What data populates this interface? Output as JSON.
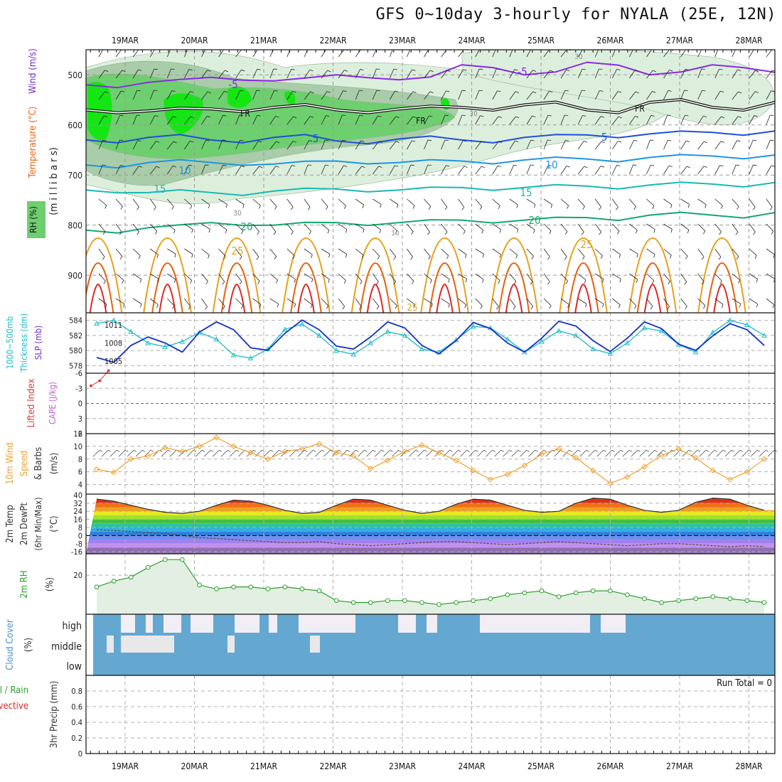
{
  "title": "GFS 0~10day 3-hourly for NYALA (25E, 12N)",
  "date_labels": [
    "19MAR",
    "20MAR",
    "21MAR",
    "22MAR",
    "23MAR",
    "24MAR",
    "25MAR",
    "26MAR",
    "27MAR",
    "28MAR"
  ],
  "colors": {
    "rh_light": "#dcefdc",
    "rh_mid": "#a9cca9",
    "rh_high": "#6ecf6e",
    "rh_max": "#14e614",
    "temp_neg": "#8a2be2",
    "temp_5": "#1e50d8",
    "temp_10": "#1e96e6",
    "temp_15": "#19b9b4",
    "temp_20": "#14a86e",
    "temp_25": "#e6a01e",
    "temp_30": "#e66414",
    "temp_35": "#dc2828",
    "slp": "#1432c8",
    "thickness": "#1ebcc8",
    "lifted_index": "#dc3c3c",
    "wind10m": "#f0a030",
    "rh2m": "#2aa02a",
    "cloud": "#64a8d2",
    "precip_total": "#2aa02a",
    "precip_conv": "#dc2828"
  },
  "chart_data": [
    {
      "type": "contour",
      "panel": "upper-air",
      "ylabel": [
        "Temperature (°C)",
        "Wind (m/s)"
      ],
      "ylabel_mid": "(m i l l i b a r s)",
      "legend_label": "RH (%)",
      "y_ticks": [
        500,
        600,
        700,
        800,
        900
      ],
      "y_range": [
        950,
        450
      ],
      "contour_labels": [
        "-5",
        "FR",
        "5",
        "10",
        "15",
        "20",
        "25",
        "30"
      ],
      "contours": [
        {
          "label": "-5",
          "pressure": [
            520,
            515,
            505,
            512,
            500,
            510,
            480,
            500,
            475,
            500,
            480,
            495
          ]
        },
        {
          "label": "FR",
          "pressure": [
            570,
            572,
            568,
            565,
            570,
            568,
            565,
            560,
            570,
            555,
            565,
            555
          ]
        },
        {
          "label": "5",
          "pressure": [
            630,
            625,
            630,
            625,
            632,
            628,
            630,
            625,
            620,
            618,
            615,
            612
          ]
        },
        {
          "label": "10",
          "pressure": [
            680,
            675,
            675,
            678,
            672,
            675,
            672,
            670,
            668,
            665,
            662,
            660
          ]
        },
        {
          "label": "15",
          "pressure": [
            730,
            735,
            735,
            732,
            728,
            730,
            725,
            725,
            722,
            720,
            718,
            715
          ]
        },
        {
          "label": "20",
          "pressure": [
            810,
            805,
            795,
            800,
            795,
            795,
            790,
            790,
            785,
            780,
            780,
            775
          ]
        }
      ]
    },
    {
      "type": "line",
      "panel": "slp-thickness",
      "ylabel": [
        "1000~500mb",
        "Thickness (dm)",
        "SLP (mb)"
      ],
      "y_ticks_left": [
        584,
        582,
        580,
        578
      ],
      "y_ticks_right": [
        1011,
        1008,
        1005
      ],
      "series": [
        {
          "name": "SLP (mb)",
          "values": [
            1005.6,
            1004.8,
            1007.6,
            1009.0,
            1008.0,
            1006.5,
            1009.8,
            1011.5,
            1010.2,
            1007.2,
            1006.8,
            1009.6,
            1011.8,
            1010.2,
            1007.5,
            1007.0,
            1009.0,
            1011.5,
            1010.5,
            1007.6,
            1006.2,
            1008.4,
            1011.4,
            1010.4,
            1008.0,
            1006.5,
            1008.8,
            1011.6,
            1010.8,
            1008.4,
            1006.6,
            1008.8,
            1011.5,
            1010.4,
            1007.8,
            1006.8,
            1009.2,
            1011.2,
            1010.2,
            1007.6
          ]
        },
        {
          "name": "Thickness (dm)",
          "values": [
            583.6,
            584.0,
            582.5,
            581.0,
            580.5,
            581.2,
            582.4,
            581.5,
            579.4,
            579.0,
            580.2,
            582.8,
            583.5,
            582.0,
            580.0,
            579.5,
            581.0,
            582.5,
            582.0,
            580.2,
            579.8,
            581.4,
            583.2,
            583.0,
            581.5,
            579.8,
            581.2,
            582.6,
            582.0,
            580.2,
            579.6,
            581.0,
            583.0,
            582.6,
            580.8,
            579.8,
            582.4,
            584.0,
            583.4,
            582.0
          ]
        }
      ]
    },
    {
      "type": "line",
      "panel": "cape-li",
      "ylabel": [
        "Lifted Index",
        "CAPE (J/kg)"
      ],
      "y_ticks": [
        6,
        3,
        0,
        -3,
        -6
      ],
      "series": [
        {
          "name": "Lifted Index",
          "x_hours": [
            0,
            3,
            6
          ],
          "values": [
            -3.5,
            -4.5,
            -6.5
          ]
        }
      ]
    },
    {
      "type": "line",
      "panel": "wind10m",
      "ylabel": [
        "10m Wind",
        "Speed",
        "& Barbs",
        "(m/s)"
      ],
      "y_ticks": [
        12,
        10,
        8,
        6,
        4
      ],
      "series": [
        {
          "name": "10m Wind Speed",
          "values": [
            6.4,
            5.9,
            8.0,
            8.5,
            9.8,
            9.2,
            10.0,
            11.4,
            10.0,
            9.0,
            8.0,
            9.2,
            9.6,
            10.4,
            9.0,
            8.5,
            6.5,
            7.8,
            9.2,
            10.2,
            9.0,
            7.8,
            6.2,
            4.8,
            5.6,
            7.0,
            8.8,
            9.6,
            8.2,
            6.2,
            4.2,
            5.2,
            6.8,
            8.6,
            9.6,
            8.2,
            6.2,
            4.8,
            6.0,
            8.0
          ]
        }
      ]
    },
    {
      "type": "area",
      "panel": "temp2m",
      "ylabel": [
        "2m Temp",
        "2m DewPt",
        "(6hr Min/Max)",
        "(°C)"
      ],
      "y_ticks": [
        40,
        32,
        24,
        16,
        8,
        0,
        -8,
        -16
      ],
      "series": [
        {
          "name": "2m Temp",
          "values": [
            36,
            34,
            30,
            26,
            23,
            22,
            24,
            30,
            35,
            34,
            30,
            25,
            22,
            23,
            30,
            36,
            35,
            30,
            25,
            22,
            24,
            31,
            36,
            35,
            30,
            25,
            23,
            24,
            32,
            37,
            36,
            30,
            25,
            23,
            25,
            33,
            37,
            36,
            30,
            25
          ]
        },
        {
          "name": "2m DewPt",
          "values": [
            6,
            5,
            4,
            3,
            2,
            0,
            -2,
            -3,
            -4,
            -5,
            -6,
            -7,
            -7,
            -6,
            -8,
            -9,
            -10,
            -9,
            -8,
            -7,
            -6,
            -6,
            -7,
            -8,
            -9,
            -8,
            -7,
            -6,
            -7,
            -8,
            -9,
            -10,
            -9,
            -8,
            -8,
            -9,
            -10,
            -11,
            -10,
            -11
          ]
        }
      ]
    },
    {
      "type": "line",
      "panel": "rh2m",
      "ylabel": [
        "2m RH",
        "(%)"
      ],
      "y_ticks": [
        20
      ],
      "series": [
        {
          "name": "2m RH",
          "values": [
            14,
            17,
            19,
            24,
            28,
            28,
            15,
            13,
            14,
            14,
            13,
            14,
            13,
            12,
            7,
            6,
            6,
            7,
            7,
            6,
            5,
            6,
            7,
            8,
            10,
            11,
            12,
            9,
            11,
            12,
            12,
            10,
            8,
            6,
            7,
            8,
            9,
            8,
            7,
            6
          ]
        }
      ]
    },
    {
      "type": "heatmap",
      "panel": "cloud",
      "ylabel": [
        "Cloud Cover",
        "(%)"
      ],
      "levels": [
        "high",
        "middle",
        "low"
      ]
    },
    {
      "type": "bar",
      "panel": "precip",
      "ylabel": [
        "Total / Rain",
        "Convective",
        "3hr Precip (mm)"
      ],
      "y_ticks": [
        0.8,
        0.6,
        0.4,
        0.2,
        0
      ],
      "run_total_label": "Run Total = 0",
      "values": []
    }
  ]
}
